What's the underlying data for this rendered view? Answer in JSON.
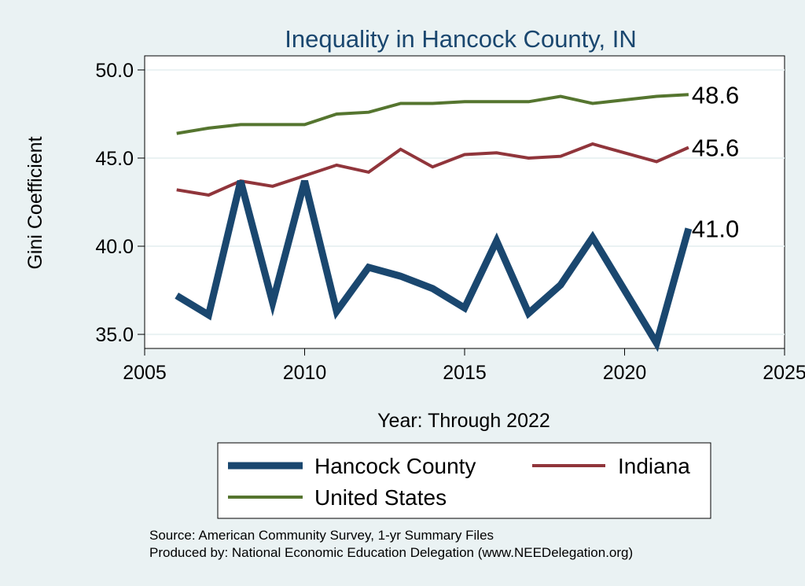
{
  "chart_data": {
    "type": "line",
    "title": "Inequality in Hancock County, IN",
    "xlabel": "Year: Through 2022",
    "ylabel": "Gini Coefficient",
    "xlim": [
      2005,
      2025
    ],
    "ylim": [
      34.2,
      50.8
    ],
    "x_ticks": [
      "2005",
      "2010",
      "2015",
      "2020",
      "2025"
    ],
    "y_ticks": [
      "35.0",
      "40.0",
      "45.0",
      "50.0"
    ],
    "grid": true,
    "x": [
      2006,
      2007,
      2008,
      2009,
      2010,
      2011,
      2012,
      2013,
      2014,
      2015,
      2016,
      2017,
      2018,
      2019,
      2020,
      2021,
      2022
    ],
    "series": [
      {
        "name": "Hancock County",
        "color": "#1a476f",
        "values": [
          37.2,
          36.1,
          43.7,
          36.8,
          43.7,
          36.3,
          38.8,
          38.3,
          37.6,
          36.5,
          40.3,
          36.2,
          37.8,
          40.5,
          37.5,
          34.5,
          41.0
        ],
        "end_label": "41.0"
      },
      {
        "name": "Indiana",
        "color": "#90353b",
        "values": [
          43.2,
          42.9,
          43.7,
          43.4,
          44.0,
          44.6,
          44.2,
          45.5,
          44.5,
          45.2,
          45.3,
          45.0,
          45.1,
          45.8,
          45.3,
          44.8,
          45.6
        ],
        "end_label": "45.6"
      },
      {
        "name": "United States",
        "color": "#55752f",
        "values": [
          46.4,
          46.7,
          46.9,
          46.9,
          46.9,
          47.5,
          47.6,
          48.1,
          48.1,
          48.2,
          48.2,
          48.2,
          48.5,
          48.1,
          48.3,
          48.5,
          48.6
        ],
        "end_label": "48.6"
      }
    ],
    "legend_position": "bottom"
  },
  "notes": [
    "Source: American Community Survey, 1-yr Summary Files",
    "Produced by: National Economic Education Delegation (www.NEEDelegation.org)"
  ]
}
